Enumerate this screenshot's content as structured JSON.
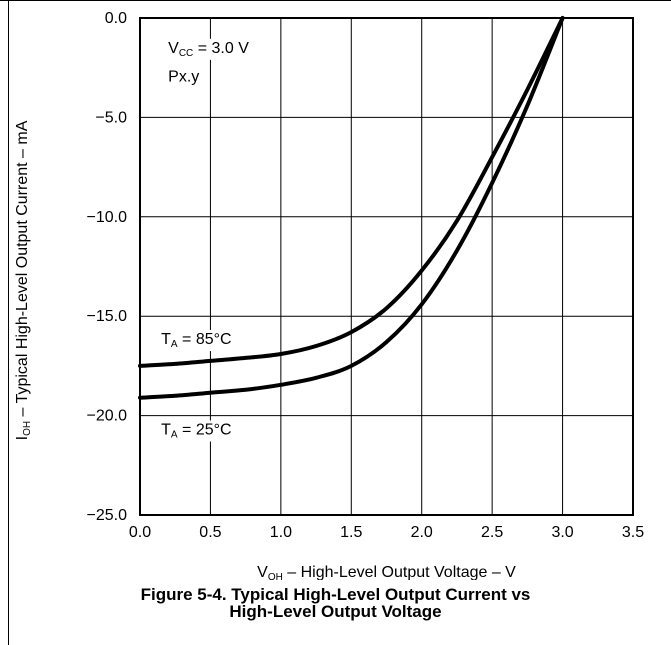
{
  "chart_data": {
    "type": "line",
    "xlabel": "V_OH – High-Level Output Voltage – V",
    "ylabel": "I_OH – Typical High-Level Output Current – mA",
    "xlim": [
      0,
      3.5
    ],
    "ylim": [
      -25,
      0
    ],
    "x_ticks": [
      "0.0",
      "0.5",
      "1.0",
      "1.5",
      "2.0",
      "2.5",
      "3.0",
      "3.5"
    ],
    "y_ticks": [
      "0.0",
      "−5.0",
      "−10.0",
      "−15.0",
      "−20.0",
      "−25.0"
    ],
    "grid": true,
    "annotations": [
      {
        "main": "V",
        "sub": "CC",
        "rest": " = 3.0 V",
        "x": 0.2,
        "y": -1.75
      },
      {
        "main": "Px.y",
        "sub": "",
        "rest": "",
        "x": 0.2,
        "y": -3.2
      },
      {
        "main": "T",
        "sub": "A",
        "rest": " = 85°C",
        "x": 0.15,
        "y": -16.4
      },
      {
        "main": "T",
        "sub": "A",
        "rest": " = 25°C",
        "x": 0.15,
        "y": -20.95
      }
    ],
    "series": [
      {
        "name": "T_A = 85°C",
        "x": [
          0.0,
          0.25,
          0.5,
          0.75,
          1.0,
          1.25,
          1.5,
          1.75,
          2.0,
          2.25,
          2.5,
          2.75,
          3.0
        ],
        "y": [
          -17.5,
          -17.4,
          -17.25,
          -17.1,
          -16.9,
          -16.5,
          -15.8,
          -14.6,
          -12.7,
          -10.2,
          -7.0,
          -3.6,
          0.0
        ]
      },
      {
        "name": "T_A = 25°C",
        "x": [
          0.0,
          0.25,
          0.5,
          0.75,
          1.0,
          1.25,
          1.5,
          1.75,
          2.0,
          2.25,
          2.5,
          2.75,
          3.0
        ],
        "y": [
          -19.1,
          -19.0,
          -18.85,
          -18.7,
          -18.45,
          -18.1,
          -17.5,
          -16.3,
          -14.4,
          -11.7,
          -8.3,
          -4.4,
          0.0
        ]
      }
    ]
  },
  "caption": {
    "line1": "Figure 5-4. Typical High-Level Output Current vs",
    "line2": "High-Level Output Voltage"
  }
}
